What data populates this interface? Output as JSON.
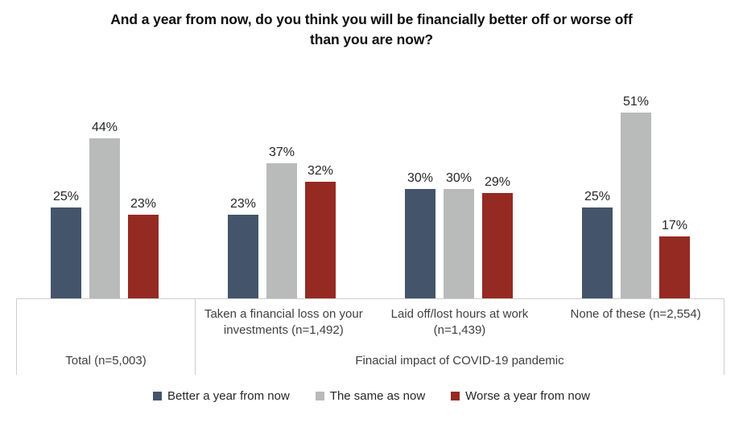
{
  "title": "And a year from now, do you think you will be financially better off or worse off than you are now?",
  "chart_data": {
    "type": "bar",
    "title": "And a year from now, do you think you will be financially better off or worse off than you are now?",
    "categories": [
      "Total (n=5,003)",
      "Taken a financial loss on your investments (n=1,492)",
      "Laid off/lost hours at work (n=1,439)",
      "None of these (n=2,554)"
    ],
    "series": [
      {
        "name": "Better a year from now",
        "color": "#44546A",
        "pattern": false,
        "values": [
          25,
          23,
          30,
          25
        ]
      },
      {
        "name": "The same as now",
        "color": "#B9BABA",
        "pattern": true,
        "values": [
          44,
          37,
          30,
          51
        ]
      },
      {
        "name": "Worse a year from now",
        "color": "#952A22",
        "pattern": false,
        "values": [
          23,
          32,
          29,
          17
        ]
      }
    ],
    "value_suffix": "%",
    "ylim": [
      0,
      60
    ],
    "gridlines": false,
    "legend_position": "bottom"
  },
  "axis": {
    "total_label": "Total (n=5,003)",
    "covid_items": [
      "Taken a financial loss on your investments (n=1,492)",
      "Laid off/lost hours at work (n=1,439)",
      "None of these (n=2,554)"
    ],
    "covid_label": "Finacial impact of COVID-19 pandemic"
  },
  "colors": {
    "better": "#44546A",
    "same": "#B9BABA",
    "worse": "#952A22",
    "axis_line": "#D0CECE"
  }
}
